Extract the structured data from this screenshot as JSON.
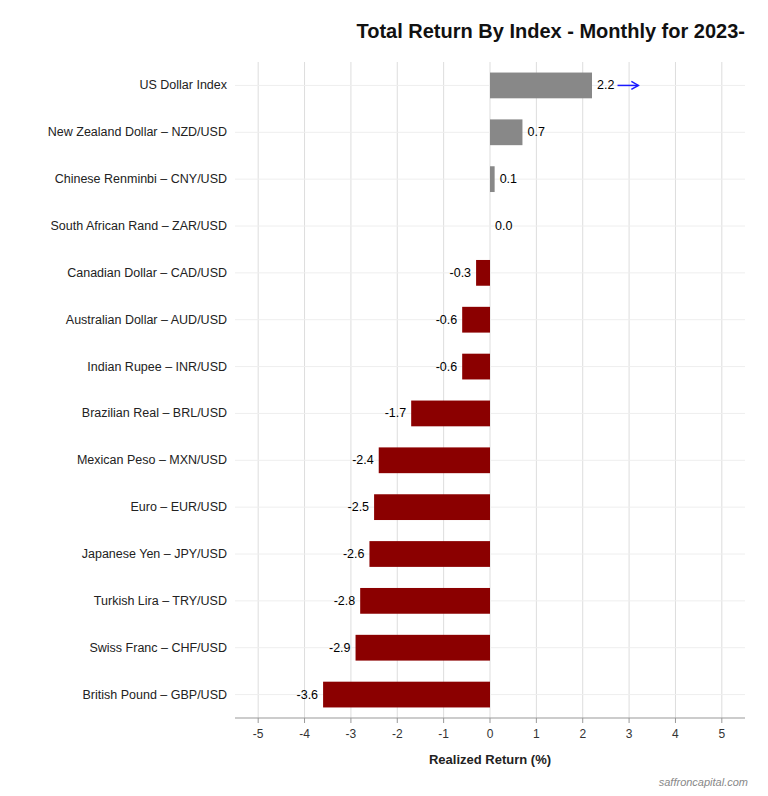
{
  "chart_data": {
    "type": "bar",
    "orientation": "horizontal",
    "title": "Total Return By Index - Monthly for 2023-",
    "categories": [
      "British Pound – GBP/USD",
      "Swiss Franc – CHF/USD",
      "Turkish Lira – TRY/USD",
      "Japanese Yen – JPY/USD",
      "Euro – EUR/USD",
      "Mexican Peso – MXN/USD",
      "Brazilian Real – BRL/USD",
      "Indian Rupee – INR/USD",
      "Australian Dollar – AUD/USD",
      "Canadian Dollar – CAD/USD",
      "South African Rand – ZAR/USD",
      "Chinese Renminbi – CNY/USD",
      "New Zealand Dollar – NZD/USD",
      "US Dollar Index"
    ],
    "values": [
      -3.6,
      -2.9,
      -2.8,
      -2.6,
      -2.5,
      -2.4,
      -1.7,
      -0.6,
      -0.6,
      -0.3,
      0.0,
      0.1,
      0.7,
      2.2
    ],
    "value_labels": [
      "-3.6",
      "-2.9",
      "-2.8",
      "-2.6",
      "-2.5",
      "-2.4",
      "-1.7",
      "-0.6",
      "-0.6",
      "-0.3",
      "0.0",
      "0.1",
      "0.7",
      "2.2"
    ],
    "colors": [
      "#8B0000",
      "#8B0000",
      "#8B0000",
      "#8B0000",
      "#8B0000",
      "#8B0000",
      "#8B0000",
      "#8B0000",
      "#8B0000",
      "#8B0000",
      "#888888",
      "#888888",
      "#888888",
      "#888888"
    ],
    "data_labels": true,
    "xlabel": "Realized Return (%)",
    "xlim": [
      -5.5,
      5.5
    ],
    "xticks": [
      -5,
      -4,
      -3,
      -2,
      -1,
      0,
      1,
      2,
      3,
      4,
      5
    ],
    "grid": true,
    "annotations": [
      {
        "text": "saffroncapital.com"
      },
      {
        "x": 2.75,
        "x2": 3.2,
        "category": "US Dollar Index",
        "color": "#1a1aff"
      }
    ]
  }
}
